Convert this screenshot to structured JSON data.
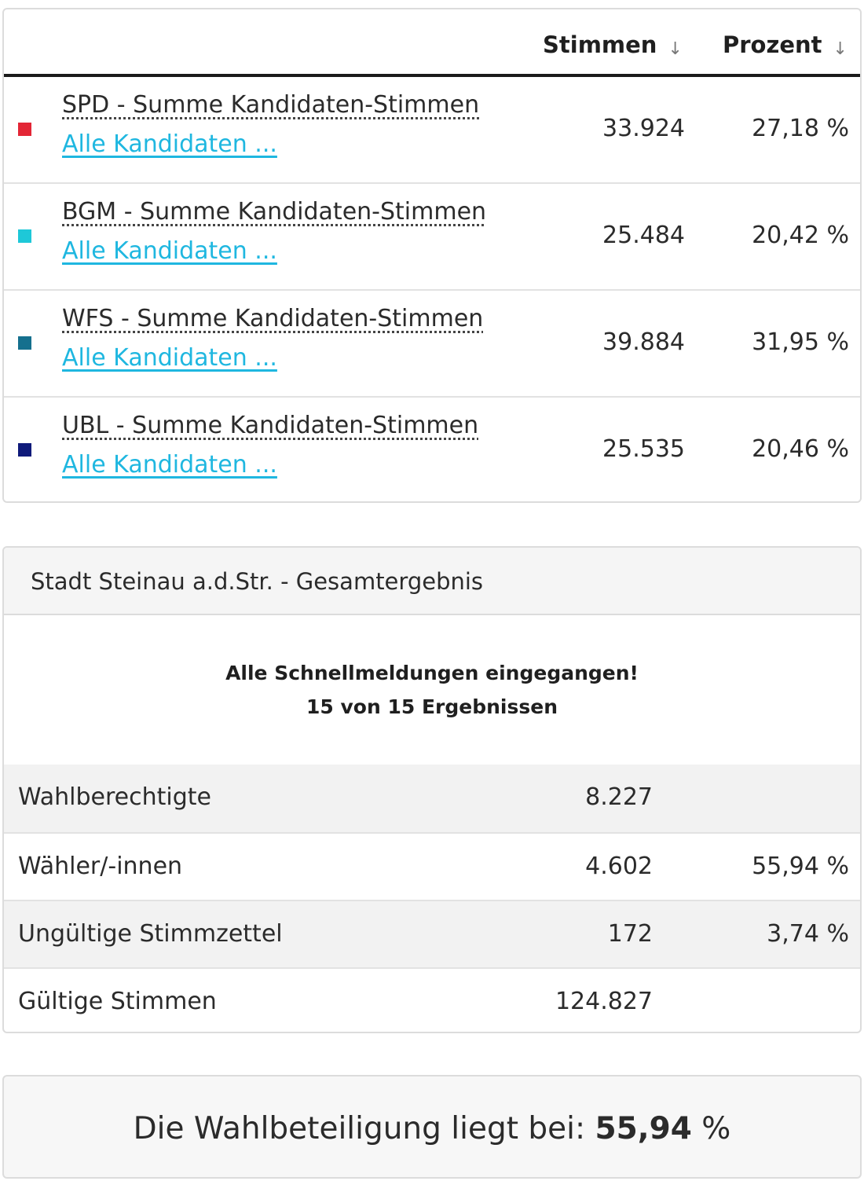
{
  "results_table": {
    "headers": {
      "votes": "Stimmen",
      "percent": "Prozent"
    },
    "rows": [
      {
        "name": "SPD - Summe Kandidaten-Stimmen",
        "link": "Alle Kandidaten ...",
        "votes": "33.924",
        "percent": "27,18 %",
        "color": "#e32636"
      },
      {
        "name": "BGM - Summe Kandidaten-Stimmen",
        "link": "Alle Kandidaten ...",
        "votes": "25.484",
        "percent": "20,42 %",
        "color": "#1ec8d8"
      },
      {
        "name": "WFS - Summe Kandidaten-Stimmen",
        "link": "Alle Kandidaten ...",
        "votes": "39.884",
        "percent": "31,95 %",
        "color": "#15708e"
      },
      {
        "name": "UBL - Summe Kandidaten-Stimmen",
        "link": "Alle Kandidaten ...",
        "votes": "25.535",
        "percent": "20,46 %",
        "color": "#0f1a7a"
      }
    ]
  },
  "summary": {
    "title": "Stadt Steinau a.d.Str. - Gesamtergebnis",
    "status_line1": "Alle Schnellmeldungen eingegangen!",
    "status_line2": "15 von 15 Ergebnissen",
    "rows": [
      {
        "label": "Wahlberechtigte",
        "value": "8.227",
        "percent": ""
      },
      {
        "label": "Wähler/-innen",
        "value": "4.602",
        "percent": "55,94 %"
      },
      {
        "label": "Ungültige Stimmzettel",
        "value": "172",
        "percent": "3,74 %"
      },
      {
        "label": "Gültige Stimmen",
        "value": "124.827",
        "percent": ""
      }
    ]
  },
  "turnout": {
    "prefix": "Die Wahlbeteiligung liegt bei: ",
    "value": "55,94",
    "suffix": " %"
  },
  "icons": {
    "sort": "↓"
  }
}
